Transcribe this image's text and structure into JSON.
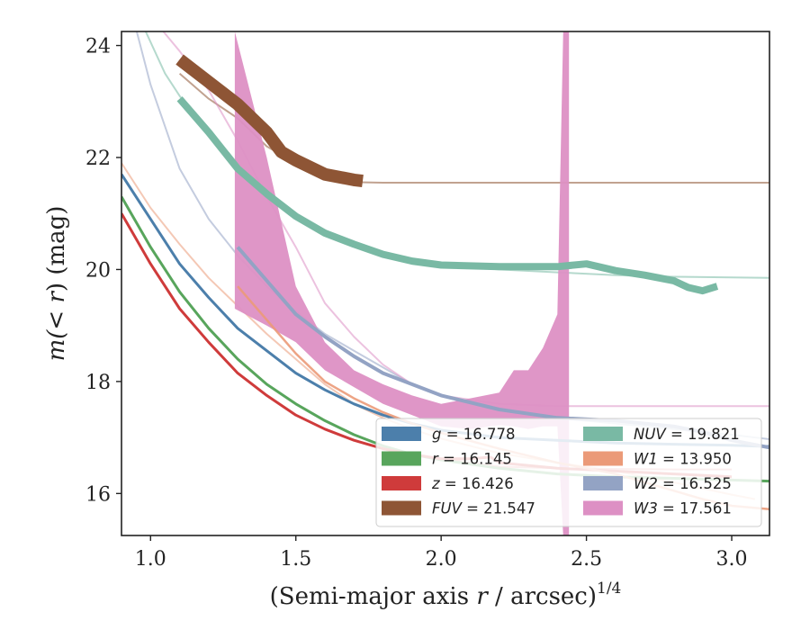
{
  "chart_data": {
    "type": "line",
    "xlabel_main": "(Semi-major axis ",
    "xlabel_var": "r",
    "xlabel_unit": " / arcsec)",
    "xlabel_exp": "1/4",
    "ylabel_main": "m(",
    "ylabel_var": "< r",
    "ylabel_unit": ") (mag)",
    "xlim": [
      0.9,
      3.13
    ],
    "ylim": [
      24.25,
      15.25
    ],
    "y_inverted": true,
    "xticks": [
      {
        "value": 1.0,
        "label": "1.0"
      },
      {
        "value": 1.5,
        "label": "1.5"
      },
      {
        "value": 2.0,
        "label": "2.0"
      },
      {
        "value": 2.5,
        "label": "2.5"
      },
      {
        "value": 3.0,
        "label": "3.0"
      }
    ],
    "yticks": [
      {
        "value": 16,
        "label": "16"
      },
      {
        "value": 18,
        "label": "18"
      },
      {
        "value": 20,
        "label": "20"
      },
      {
        "value": 22,
        "label": "22"
      },
      {
        "value": 24,
        "label": "24"
      }
    ],
    "legend_position": "bottom-right",
    "legend": [
      {
        "band": "g",
        "value": "16.778",
        "color": "#4c7fab"
      },
      {
        "band": "r",
        "value": "16.145",
        "color": "#58a55c"
      },
      {
        "band": "z",
        "value": "16.426",
        "color": "#cf3b3b"
      },
      {
        "band": "FUV",
        "value": "21.547",
        "color": "#8e5535"
      },
      {
        "band": "NUV",
        "value": "19.821",
        "color": "#79b9a4"
      },
      {
        "band": "W1",
        "value": "13.950",
        "color": "#eb9a78"
      },
      {
        "band": "W2",
        "value": "16.525",
        "color": "#93a3c4"
      },
      {
        "band": "W3",
        "value": "17.561",
        "color": "#dd90c4"
      }
    ],
    "series": [
      {
        "name": "g",
        "color": "#4c7fab",
        "x": [
          0.9,
          1.0,
          1.1,
          1.2,
          1.3,
          1.4,
          1.5,
          1.6,
          1.7,
          1.8,
          1.9,
          2.0,
          2.2,
          2.4,
          2.6,
          2.8,
          3.0,
          3.13
        ],
        "y": [
          21.7,
          20.9,
          20.1,
          19.5,
          18.95,
          18.55,
          18.15,
          17.85,
          17.6,
          17.4,
          17.25,
          17.13,
          17.0,
          16.95,
          16.9,
          16.88,
          16.86,
          16.84
        ],
        "model_y": [
          21.7,
          20.9,
          20.1,
          19.5,
          18.95,
          18.55,
          18.15,
          17.85,
          17.6,
          17.4,
          17.25,
          17.13,
          17.0,
          16.95,
          16.9,
          16.88,
          16.86,
          16.84
        ]
      },
      {
        "name": "r",
        "color": "#58a55c",
        "x": [
          0.9,
          1.0,
          1.1,
          1.2,
          1.3,
          1.4,
          1.5,
          1.6,
          1.7,
          1.8,
          1.9,
          2.0,
          2.2,
          2.4,
          2.6,
          2.8,
          3.0,
          3.13
        ],
        "y": [
          21.3,
          20.4,
          19.6,
          18.95,
          18.4,
          17.95,
          17.6,
          17.3,
          17.05,
          16.85,
          16.7,
          16.6,
          16.45,
          16.35,
          16.3,
          16.27,
          16.24,
          16.22
        ],
        "model_y": [
          21.3,
          20.4,
          19.6,
          18.95,
          18.4,
          17.95,
          17.6,
          17.3,
          17.05,
          16.85,
          16.7,
          16.6,
          16.45,
          16.35,
          16.3,
          16.27,
          16.24,
          16.22
        ]
      },
      {
        "name": "z",
        "color": "#cf3b3b",
        "x": [
          0.9,
          1.0,
          1.1,
          1.2,
          1.3,
          1.4,
          1.5,
          1.6,
          1.7,
          1.8,
          1.9,
          2.0,
          2.1,
          2.17,
          2.2,
          2.4,
          2.6,
          2.8,
          3.0
        ],
        "y": [
          21.0,
          20.1,
          19.3,
          18.7,
          18.15,
          17.75,
          17.4,
          17.15,
          16.95,
          16.8,
          16.7,
          16.62,
          16.62,
          16.65,
          16.55,
          16.45,
          16.4,
          16.35,
          16.3
        ],
        "model_y": [
          21.0,
          20.1,
          19.3,
          18.7,
          18.15,
          17.75,
          17.4,
          17.15,
          16.95,
          16.8,
          16.7,
          16.62,
          16.55,
          16.5,
          16.48,
          16.45,
          16.44,
          16.43,
          16.43
        ]
      },
      {
        "name": "FUV",
        "color": "#8e5535",
        "x": [
          1.1,
          1.2,
          1.3,
          1.4,
          1.45,
          1.5,
          1.6,
          1.7,
          1.73
        ],
        "y": [
          23.75,
          23.35,
          22.95,
          22.45,
          22.1,
          21.95,
          21.7,
          21.6,
          21.58
        ],
        "model_x": [
          1.1,
          1.2,
          1.3,
          1.4,
          1.5,
          1.6,
          1.7,
          1.8,
          2.0,
          2.5,
          3.0,
          3.13
        ],
        "model_y": [
          23.5,
          23.05,
          22.7,
          22.2,
          21.9,
          21.7,
          21.56,
          21.55,
          21.55,
          21.55,
          21.55,
          21.55
        ]
      },
      {
        "name": "NUV",
        "color": "#79b9a4",
        "x": [
          1.1,
          1.2,
          1.3,
          1.4,
          1.5,
          1.6,
          1.7,
          1.8,
          1.9,
          2.0,
          2.2,
          2.4,
          2.5,
          2.6,
          2.7,
          2.8,
          2.85,
          2.9,
          2.95
        ],
        "y": [
          23.05,
          22.45,
          21.8,
          21.35,
          20.95,
          20.65,
          20.45,
          20.27,
          20.15,
          20.08,
          20.05,
          20.05,
          20.1,
          19.98,
          19.9,
          19.8,
          19.68,
          19.62,
          19.7
        ],
        "model_x": [
          0.97,
          1.05,
          1.1,
          1.2,
          1.3,
          1.4,
          1.5,
          1.6,
          1.7,
          1.8,
          1.9,
          2.0,
          2.2,
          2.4,
          2.6,
          2.8,
          3.0,
          3.13
        ],
        "model_y": [
          24.4,
          23.5,
          23.1,
          22.45,
          21.8,
          21.35,
          20.95,
          20.65,
          20.45,
          20.27,
          20.15,
          20.08,
          20.0,
          19.95,
          19.9,
          19.87,
          19.86,
          19.85
        ]
      },
      {
        "name": "W1",
        "color": "#eb9a78",
        "x": [
          1.3,
          1.4,
          1.5,
          1.6,
          1.7,
          1.8,
          1.9,
          2.0,
          2.2,
          2.4,
          2.5,
          2.6,
          2.7,
          2.8,
          2.9,
          3.0,
          3.13
        ],
        "y": [
          19.7,
          19.1,
          18.5,
          18.0,
          17.7,
          17.45,
          17.25,
          17.08,
          16.8,
          16.55,
          16.45,
          16.35,
          16.2,
          16.05,
          15.9,
          15.78,
          15.72
        ],
        "model_x": [
          0.9,
          1.0,
          1.1,
          1.2,
          1.3,
          1.4,
          1.5,
          1.6,
          1.7,
          1.8,
          1.9,
          2.0,
          2.2,
          2.4,
          2.6,
          2.8,
          3.0,
          3.08
        ],
        "model_y": [
          21.9,
          21.1,
          20.45,
          19.85,
          19.35,
          18.85,
          18.4,
          17.95,
          17.6,
          17.35,
          17.15,
          16.98,
          16.72,
          16.55,
          16.4,
          16.2,
          15.98,
          15.9
        ]
      },
      {
        "name": "W2",
        "color": "#93a3c4",
        "x": [
          1.3,
          1.4,
          1.5,
          1.6,
          1.7,
          1.8,
          1.9,
          2.0,
          2.2,
          2.4,
          2.6,
          2.7,
          2.8,
          2.9,
          3.0,
          3.13
        ],
        "y": [
          20.4,
          19.8,
          19.2,
          18.8,
          18.45,
          18.15,
          17.95,
          17.75,
          17.5,
          17.35,
          17.3,
          17.25,
          17.2,
          17.1,
          16.95,
          16.82
        ],
        "model_x": [
          0.95,
          1.0,
          1.1,
          1.2,
          1.3,
          1.4,
          1.5,
          1.6,
          1.7,
          1.8,
          1.9,
          2.0,
          2.2,
          2.4,
          2.6,
          2.8,
          3.0,
          3.13
        ],
        "model_y": [
          24.3,
          23.3,
          21.8,
          20.9,
          20.25,
          19.7,
          19.25,
          18.85,
          18.55,
          18.25,
          17.95,
          17.75,
          17.5,
          17.35,
          17.25,
          17.15,
          17.05,
          16.97
        ]
      },
      {
        "name": "W3",
        "color": "#dd90c4",
        "x": [
          1.29,
          1.4,
          1.5,
          1.6,
          1.7,
          1.8,
          1.9,
          2.0,
          2.1,
          2.2,
          2.25,
          2.3,
          2.35,
          2.4,
          2.42,
          2.44
        ],
        "y_upper": [
          19.3,
          19.0,
          18.7,
          18.2,
          17.9,
          17.6,
          17.4,
          17.2,
          17.15,
          17.22,
          17.2,
          17.15,
          17.2,
          17.2,
          15.25,
          15.25
        ],
        "y_lower": [
          24.25,
          22.0,
          19.7,
          18.7,
          18.2,
          17.95,
          17.75,
          17.6,
          17.7,
          17.8,
          18.2,
          18.2,
          18.6,
          19.2,
          24.25,
          24.25
        ],
        "model_x": [
          1.02,
          1.1,
          1.2,
          1.3,
          1.4,
          1.5,
          1.6,
          1.7,
          1.8,
          1.9,
          2.0,
          2.2,
          2.4,
          2.6,
          2.8,
          3.0,
          3.13
        ],
        "model_y": [
          24.4,
          23.9,
          23.2,
          22.3,
          21.3,
          20.4,
          19.4,
          18.8,
          18.3,
          17.95,
          17.75,
          17.6,
          17.56,
          17.56,
          17.56,
          17.56,
          17.56
        ]
      }
    ]
  }
}
